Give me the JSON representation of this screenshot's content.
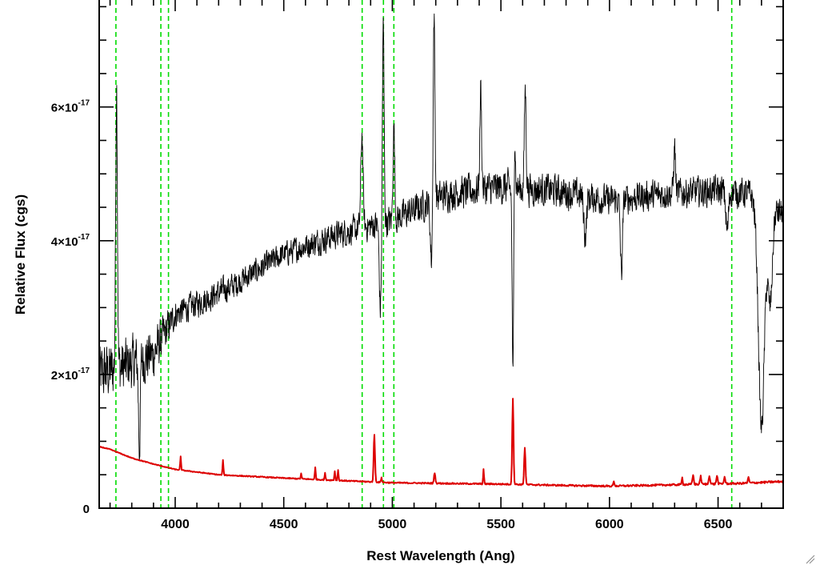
{
  "chart_data": {
    "type": "line",
    "title": "",
    "xlabel": "Rest Wavelength (Ang)",
    "ylabel": "Relative Flux (cgs)",
    "xlim": [
      3650,
      6800
    ],
    "ylim": [
      0,
      7.6e-17
    ],
    "x_ticks": [
      4000,
      4500,
      5000,
      5500,
      6000,
      6500
    ],
    "x_tick_labels": [
      "4000",
      "4500",
      "5000",
      "5500",
      "6000",
      "6500"
    ],
    "y_ticks": [
      {
        "value": 0,
        "mantissa": "0",
        "exponent": ""
      },
      {
        "value": 2e-17,
        "mantissa": "2×10",
        "exponent": "-17"
      },
      {
        "value": 4e-17,
        "mantissa": "4×10",
        "exponent": "-17"
      },
      {
        "value": 6e-17,
        "mantissa": "6×10",
        "exponent": "-17"
      }
    ],
    "grid": false,
    "colors": {
      "observed": "#000000",
      "model": "#dd0000",
      "line_markers": "#00dd00"
    },
    "line_markers": [
      3727,
      3934,
      3969,
      4861,
      4959,
      5007,
      6563
    ],
    "series": [
      {
        "id": "observed",
        "style": "noisy",
        "baseline": [
          [
            3650,
            2e-17
          ],
          [
            3750,
            2.1e-17
          ],
          [
            3900,
            2.3e-17
          ],
          [
            4000,
            2.9e-17
          ],
          [
            4250,
            3.3e-17
          ],
          [
            4500,
            3.8e-17
          ],
          [
            4750,
            4.1e-17
          ],
          [
            5000,
            4.3e-17
          ],
          [
            5250,
            4.7e-17
          ],
          [
            5500,
            4.8e-17
          ],
          [
            5750,
            4.75e-17
          ],
          [
            6000,
            4.6e-17
          ],
          [
            6250,
            4.7e-17
          ],
          [
            6500,
            4.75e-17
          ],
          [
            6650,
            4.7e-17
          ],
          [
            6700,
            4.5e-17
          ],
          [
            6800,
            4.4e-17
          ]
        ],
        "noise": [
          [
            3650,
            6e-18
          ],
          [
            3900,
            5e-18
          ],
          [
            4000,
            2.8e-18
          ],
          [
            4500,
            2.5e-18
          ],
          [
            5000,
            3e-18
          ],
          [
            5500,
            3.5e-18
          ],
          [
            6000,
            3e-18
          ],
          [
            6800,
            3e-18
          ]
        ],
        "features": [
          {
            "x": 3730,
            "dy": 4.3e-17,
            "w": 4
          },
          {
            "x": 3835,
            "dy": -1.3e-17,
            "w": 4
          },
          {
            "x": 4860,
            "dy": 1.4e-17,
            "w": 5
          },
          {
            "x": 4945,
            "dy": -1.3e-17,
            "w": 5
          },
          {
            "x": 4958,
            "dy": 3e-17,
            "w": 4
          },
          {
            "x": 5007,
            "dy": 1.4e-17,
            "w": 4
          },
          {
            "x": 5180,
            "dy": -9e-18,
            "w": 5
          },
          {
            "x": 5192,
            "dy": 2.8e-17,
            "w": 4
          },
          {
            "x": 5407,
            "dy": 1.5e-17,
            "w": 4
          },
          {
            "x": 5557,
            "dy": -4.8e-17,
            "w": 4
          },
          {
            "x": 5560,
            "dy": 3e-17,
            "w": 4
          },
          {
            "x": 5612,
            "dy": 1.5e-17,
            "w": 4
          },
          {
            "x": 5888,
            "dy": -6e-18,
            "w": 6
          },
          {
            "x": 6055,
            "dy": -1.1e-17,
            "w": 5
          },
          {
            "x": 6300,
            "dy": 7e-18,
            "w": 4
          },
          {
            "x": 6542,
            "dy": -6e-18,
            "w": 6
          },
          {
            "x": 6700,
            "dy": -3.3e-17,
            "w": 14
          },
          {
            "x": 6740,
            "dy": -1.4e-17,
            "w": 10
          }
        ]
      },
      {
        "id": "model",
        "style": "smooth",
        "baseline": [
          [
            3650,
            9.2e-18
          ],
          [
            3700,
            8.8e-18
          ],
          [
            3800,
            7.5e-18
          ],
          [
            3900,
            6.6e-18
          ],
          [
            4000,
            5.8e-18
          ],
          [
            4200,
            5e-18
          ],
          [
            4500,
            4.5e-18
          ],
          [
            5000,
            3.8e-18
          ],
          [
            5500,
            3.6e-18
          ],
          [
            5800,
            3.4e-18
          ],
          [
            6000,
            3.3e-18
          ],
          [
            6300,
            3.5e-18
          ],
          [
            6600,
            3.7e-18
          ],
          [
            6800,
            4e-18
          ]
        ],
        "noise": [
          [
            3650,
            1e-19
          ],
          [
            6800,
            3e-19
          ]
        ],
        "features": [
          {
            "x": 4025,
            "dy": 2e-18,
            "w": 2
          },
          {
            "x": 4220,
            "dy": 2.2e-18,
            "w": 2
          },
          {
            "x": 4580,
            "dy": 8e-19,
            "w": 2
          },
          {
            "x": 4645,
            "dy": 1.8e-18,
            "w": 2
          },
          {
            "x": 4690,
            "dy": 1e-18,
            "w": 2
          },
          {
            "x": 4735,
            "dy": 1.4e-18,
            "w": 2
          },
          {
            "x": 4750,
            "dy": 1.6e-18,
            "w": 2
          },
          {
            "x": 4917,
            "dy": 7.2e-18,
            "w": 3
          },
          {
            "x": 4950,
            "dy": 8e-19,
            "w": 2
          },
          {
            "x": 5195,
            "dy": 1.6e-18,
            "w": 3
          },
          {
            "x": 5420,
            "dy": 2.2e-18,
            "w": 2
          },
          {
            "x": 5555,
            "dy": 1.28e-17,
            "w": 3
          },
          {
            "x": 5610,
            "dy": 5.5e-18,
            "w": 3
          },
          {
            "x": 6020,
            "dy": 6e-19,
            "w": 3
          },
          {
            "x": 6335,
            "dy": 1.2e-18,
            "w": 2
          },
          {
            "x": 6385,
            "dy": 1.4e-18,
            "w": 3
          },
          {
            "x": 6420,
            "dy": 1.2e-18,
            "w": 3
          },
          {
            "x": 6460,
            "dy": 1.3e-18,
            "w": 3
          },
          {
            "x": 6495,
            "dy": 1.2e-18,
            "w": 3
          },
          {
            "x": 6530,
            "dy": 1e-18,
            "w": 3
          },
          {
            "x": 6640,
            "dy": 8e-19,
            "w": 3
          }
        ]
      }
    ]
  }
}
